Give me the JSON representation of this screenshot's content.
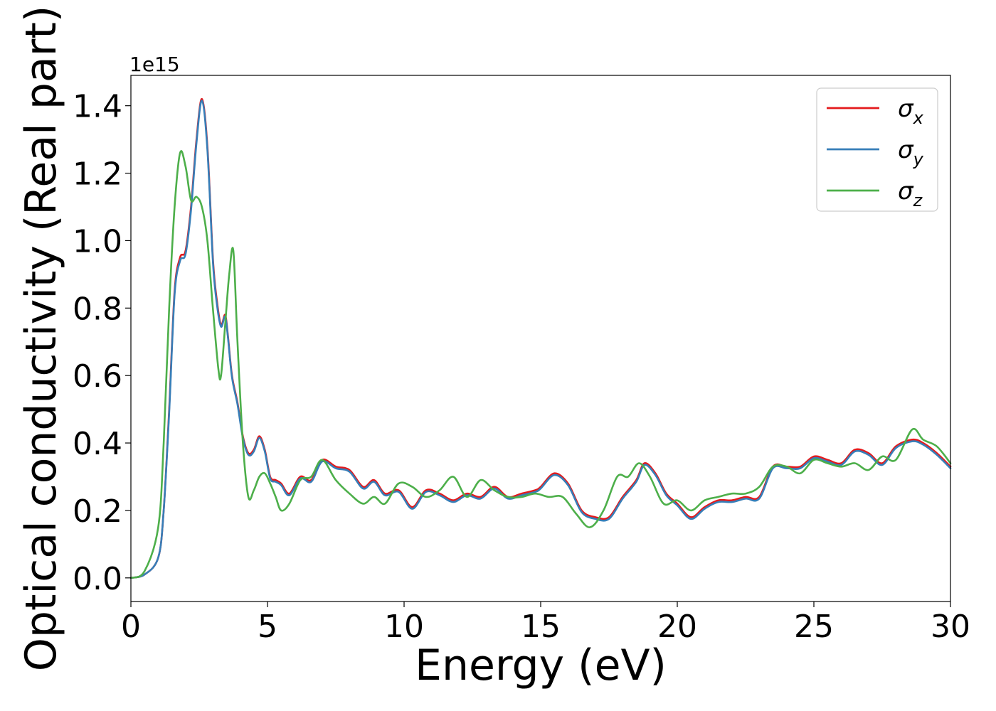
{
  "chart_data": {
    "type": "line",
    "xlabel": "Energy (eV)",
    "ylabel": "Optical conductivity (Real part)",
    "y_offset_label": "1e15",
    "xlim": [
      0,
      30
    ],
    "ylim": [
      -0.07,
      1.49
    ],
    "x_ticks": [
      0,
      5,
      10,
      15,
      20,
      25,
      30
    ],
    "x_tick_labels": [
      "0",
      "5",
      "10",
      "15",
      "20",
      "25",
      "30"
    ],
    "y_ticks": [
      0.0,
      0.2,
      0.4,
      0.6,
      0.8,
      1.0,
      1.2,
      1.4
    ],
    "y_tick_labels": [
      "0.0",
      "0.2",
      "0.4",
      "0.6",
      "0.8",
      "1.0",
      "1.2",
      "1.4"
    ],
    "grid": false,
    "legend_position": "top-right",
    "series": [
      {
        "name": "σx",
        "legend_base": "σ",
        "legend_sub": "x",
        "color": "#e41a1c",
        "x": [
          0,
          0.5,
          1.0,
          1.2,
          1.4,
          1.6,
          1.8,
          2.0,
          2.2,
          2.4,
          2.6,
          2.8,
          3.0,
          3.15,
          3.3,
          3.45,
          3.55,
          3.7,
          3.9,
          4.1,
          4.3,
          4.5,
          4.7,
          4.9,
          5.1,
          5.3,
          5.5,
          5.8,
          6.2,
          6.6,
          7.0,
          7.5,
          8.0,
          8.5,
          8.9,
          9.3,
          9.8,
          10.3,
          10.8,
          11.3,
          11.8,
          12.3,
          12.8,
          13.3,
          13.8,
          14.3,
          14.8,
          15.0,
          15.5,
          16.0,
          16.5,
          17.0,
          17.5,
          18.0,
          18.5,
          18.8,
          19.2,
          19.6,
          20.0,
          20.5,
          21.0,
          21.5,
          22.0,
          22.5,
          23.0,
          23.5,
          24.0,
          24.5,
          25.0,
          25.5,
          26.0,
          26.5,
          27.0,
          27.5,
          28.0,
          28.6,
          29.0,
          29.5,
          30.0
        ],
        "y": [
          0.0,
          0.01,
          0.06,
          0.2,
          0.5,
          0.85,
          0.95,
          0.97,
          1.1,
          1.3,
          1.42,
          1.28,
          0.95,
          0.82,
          0.75,
          0.78,
          0.72,
          0.6,
          0.52,
          0.42,
          0.37,
          0.38,
          0.42,
          0.38,
          0.3,
          0.29,
          0.28,
          0.25,
          0.3,
          0.29,
          0.35,
          0.33,
          0.32,
          0.27,
          0.29,
          0.25,
          0.26,
          0.21,
          0.26,
          0.25,
          0.23,
          0.25,
          0.24,
          0.27,
          0.24,
          0.25,
          0.26,
          0.27,
          0.31,
          0.28,
          0.2,
          0.18,
          0.18,
          0.24,
          0.29,
          0.34,
          0.31,
          0.25,
          0.22,
          0.18,
          0.21,
          0.23,
          0.23,
          0.24,
          0.24,
          0.33,
          0.33,
          0.33,
          0.36,
          0.35,
          0.34,
          0.38,
          0.37,
          0.34,
          0.39,
          0.41,
          0.4,
          0.37,
          0.33
        ]
      },
      {
        "name": "σy",
        "legend_base": "σ",
        "legend_sub": "y",
        "color": "#377eb8",
        "x": [
          0,
          0.5,
          1.0,
          1.2,
          1.4,
          1.6,
          1.8,
          2.0,
          2.2,
          2.4,
          2.6,
          2.8,
          3.0,
          3.15,
          3.3,
          3.45,
          3.55,
          3.7,
          3.9,
          4.1,
          4.3,
          4.5,
          4.7,
          4.9,
          5.1,
          5.3,
          5.5,
          5.8,
          6.2,
          6.6,
          7.0,
          7.5,
          8.0,
          8.5,
          8.9,
          9.3,
          9.8,
          10.3,
          10.8,
          11.3,
          11.8,
          12.3,
          12.8,
          13.3,
          13.8,
          14.3,
          14.8,
          15.0,
          15.5,
          16.0,
          16.5,
          17.0,
          17.5,
          18.0,
          18.5,
          18.8,
          19.2,
          19.6,
          20.0,
          20.5,
          21.0,
          21.5,
          22.0,
          22.5,
          23.0,
          23.5,
          24.0,
          24.5,
          25.0,
          25.5,
          26.0,
          26.5,
          27.0,
          27.5,
          28.0,
          28.6,
          29.0,
          29.5,
          30.0
        ],
        "y": [
          0.0,
          0.01,
          0.06,
          0.2,
          0.49,
          0.84,
          0.94,
          0.96,
          1.09,
          1.29,
          1.415,
          1.27,
          0.94,
          0.81,
          0.745,
          0.775,
          0.715,
          0.595,
          0.515,
          0.415,
          0.365,
          0.375,
          0.415,
          0.375,
          0.295,
          0.285,
          0.275,
          0.245,
          0.295,
          0.285,
          0.345,
          0.325,
          0.315,
          0.265,
          0.285,
          0.245,
          0.255,
          0.205,
          0.255,
          0.245,
          0.225,
          0.245,
          0.235,
          0.265,
          0.235,
          0.245,
          0.255,
          0.265,
          0.305,
          0.275,
          0.195,
          0.175,
          0.175,
          0.235,
          0.285,
          0.335,
          0.305,
          0.245,
          0.215,
          0.175,
          0.205,
          0.225,
          0.225,
          0.235,
          0.235,
          0.325,
          0.325,
          0.325,
          0.355,
          0.345,
          0.335,
          0.375,
          0.365,
          0.335,
          0.385,
          0.405,
          0.395,
          0.365,
          0.325
        ]
      },
      {
        "name": "σz",
        "legend_base": "σ",
        "legend_sub": "z",
        "color": "#4daf4a",
        "x": [
          0,
          0.5,
          1.0,
          1.2,
          1.4,
          1.6,
          1.8,
          2.0,
          2.2,
          2.4,
          2.6,
          2.8,
          3.0,
          3.2,
          3.3,
          3.45,
          3.6,
          3.75,
          3.9,
          4.1,
          4.3,
          4.5,
          4.7,
          4.9,
          5.1,
          5.3,
          5.5,
          5.8,
          6.2,
          6.6,
          7.0,
          7.5,
          8.0,
          8.5,
          8.9,
          9.3,
          9.8,
          10.3,
          10.8,
          11.3,
          11.8,
          12.3,
          12.8,
          13.3,
          13.8,
          14.3,
          14.8,
          15.3,
          15.8,
          16.3,
          16.8,
          17.3,
          17.8,
          18.2,
          18.6,
          19.0,
          19.5,
          20.0,
          20.5,
          21.0,
          21.5,
          22.0,
          22.5,
          23.0,
          23.5,
          24.0,
          24.5,
          25.0,
          25.5,
          26.0,
          26.5,
          27.0,
          27.5,
          28.0,
          28.6,
          29.0,
          29.5,
          30.0
        ],
        "y": [
          0.0,
          0.02,
          0.15,
          0.4,
          0.8,
          1.1,
          1.26,
          1.22,
          1.12,
          1.13,
          1.1,
          1.0,
          0.8,
          0.62,
          0.6,
          0.75,
          0.9,
          0.97,
          0.7,
          0.4,
          0.24,
          0.26,
          0.3,
          0.31,
          0.28,
          0.24,
          0.2,
          0.22,
          0.29,
          0.3,
          0.35,
          0.29,
          0.25,
          0.22,
          0.24,
          0.22,
          0.28,
          0.27,
          0.24,
          0.26,
          0.3,
          0.24,
          0.29,
          0.26,
          0.24,
          0.24,
          0.25,
          0.24,
          0.24,
          0.19,
          0.15,
          0.2,
          0.3,
          0.3,
          0.34,
          0.3,
          0.22,
          0.23,
          0.2,
          0.23,
          0.24,
          0.25,
          0.25,
          0.27,
          0.33,
          0.33,
          0.31,
          0.35,
          0.34,
          0.33,
          0.34,
          0.32,
          0.36,
          0.35,
          0.44,
          0.41,
          0.39,
          0.34
        ]
      }
    ]
  }
}
